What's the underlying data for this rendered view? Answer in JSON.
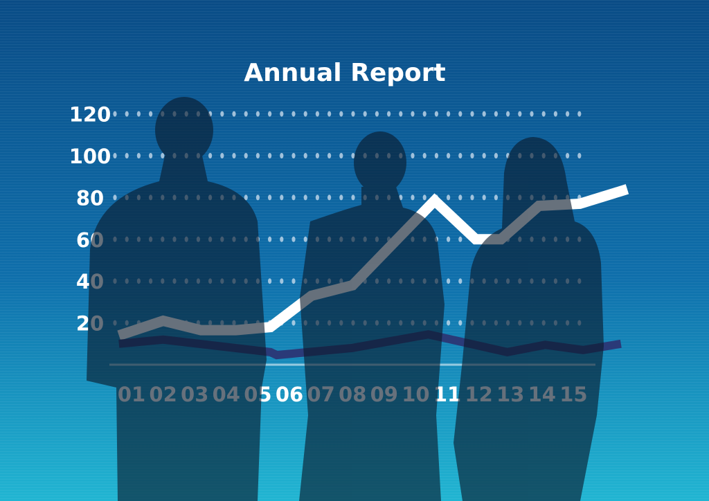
{
  "colors": {
    "bg_top": "#0a4c86",
    "bg_bottom": "#21b5d2",
    "line_main": "#ffffff",
    "line_secondary": "#2a3a78",
    "silhouette": "#0a1a2c"
  },
  "chart_data": {
    "type": "line",
    "title": "Annual Report",
    "xlabel": "",
    "ylabel": "",
    "categories": [
      "01",
      "02",
      "03",
      "04",
      "05",
      "06",
      "07",
      "08",
      "09",
      "10",
      "11",
      "12",
      "13",
      "14",
      "15"
    ],
    "yticks": [
      "20",
      "40",
      "60",
      "80",
      "100",
      "120"
    ],
    "ylim": [
      0,
      120
    ],
    "grid": true,
    "series": [
      {
        "points": [
          [
            0.6,
            14
          ],
          [
            2.0,
            21
          ],
          [
            3.2,
            16.5
          ],
          [
            4.3,
            16.5
          ],
          [
            5.4,
            18
          ],
          [
            6.7,
            33
          ],
          [
            8.0,
            38
          ],
          [
            10.6,
            78.5
          ],
          [
            11.9,
            60
          ],
          [
            12.7,
            60
          ],
          [
            13.9,
            76
          ],
          [
            15.2,
            77
          ],
          [
            16.7,
            84
          ]
        ]
      },
      {
        "points": [
          [
            0.6,
            10
          ],
          [
            2.0,
            12
          ],
          [
            5.4,
            6
          ],
          [
            5.6,
            4.6
          ],
          [
            8.0,
            8
          ],
          [
            10.4,
            14.5
          ],
          [
            12.9,
            6
          ],
          [
            14.1,
            9.5
          ],
          [
            15.3,
            7
          ],
          [
            16.5,
            10
          ]
        ]
      }
    ]
  }
}
